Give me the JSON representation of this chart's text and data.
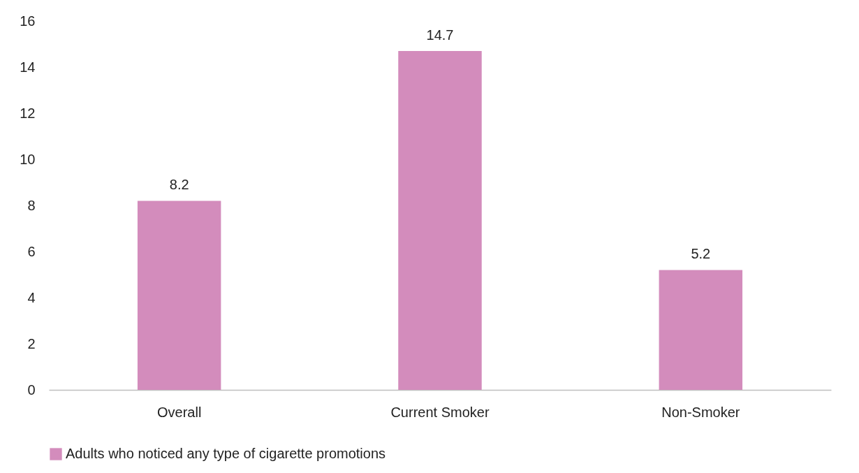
{
  "chart_data": {
    "type": "bar",
    "categories": [
      "Overall",
      "Current Smoker",
      "Non-Smoker"
    ],
    "series": [
      {
        "name": "Adults who noticed any type of cigarette promotions",
        "color": "#d38cbc",
        "values": [
          8.2,
          14.7,
          5.2
        ]
      }
    ],
    "ylim": [
      0,
      16
    ],
    "yticks": [
      0,
      2,
      4,
      6,
      8,
      10,
      12,
      14,
      16
    ],
    "data_labels": true,
    "grid": false,
    "legend": "bottom"
  }
}
